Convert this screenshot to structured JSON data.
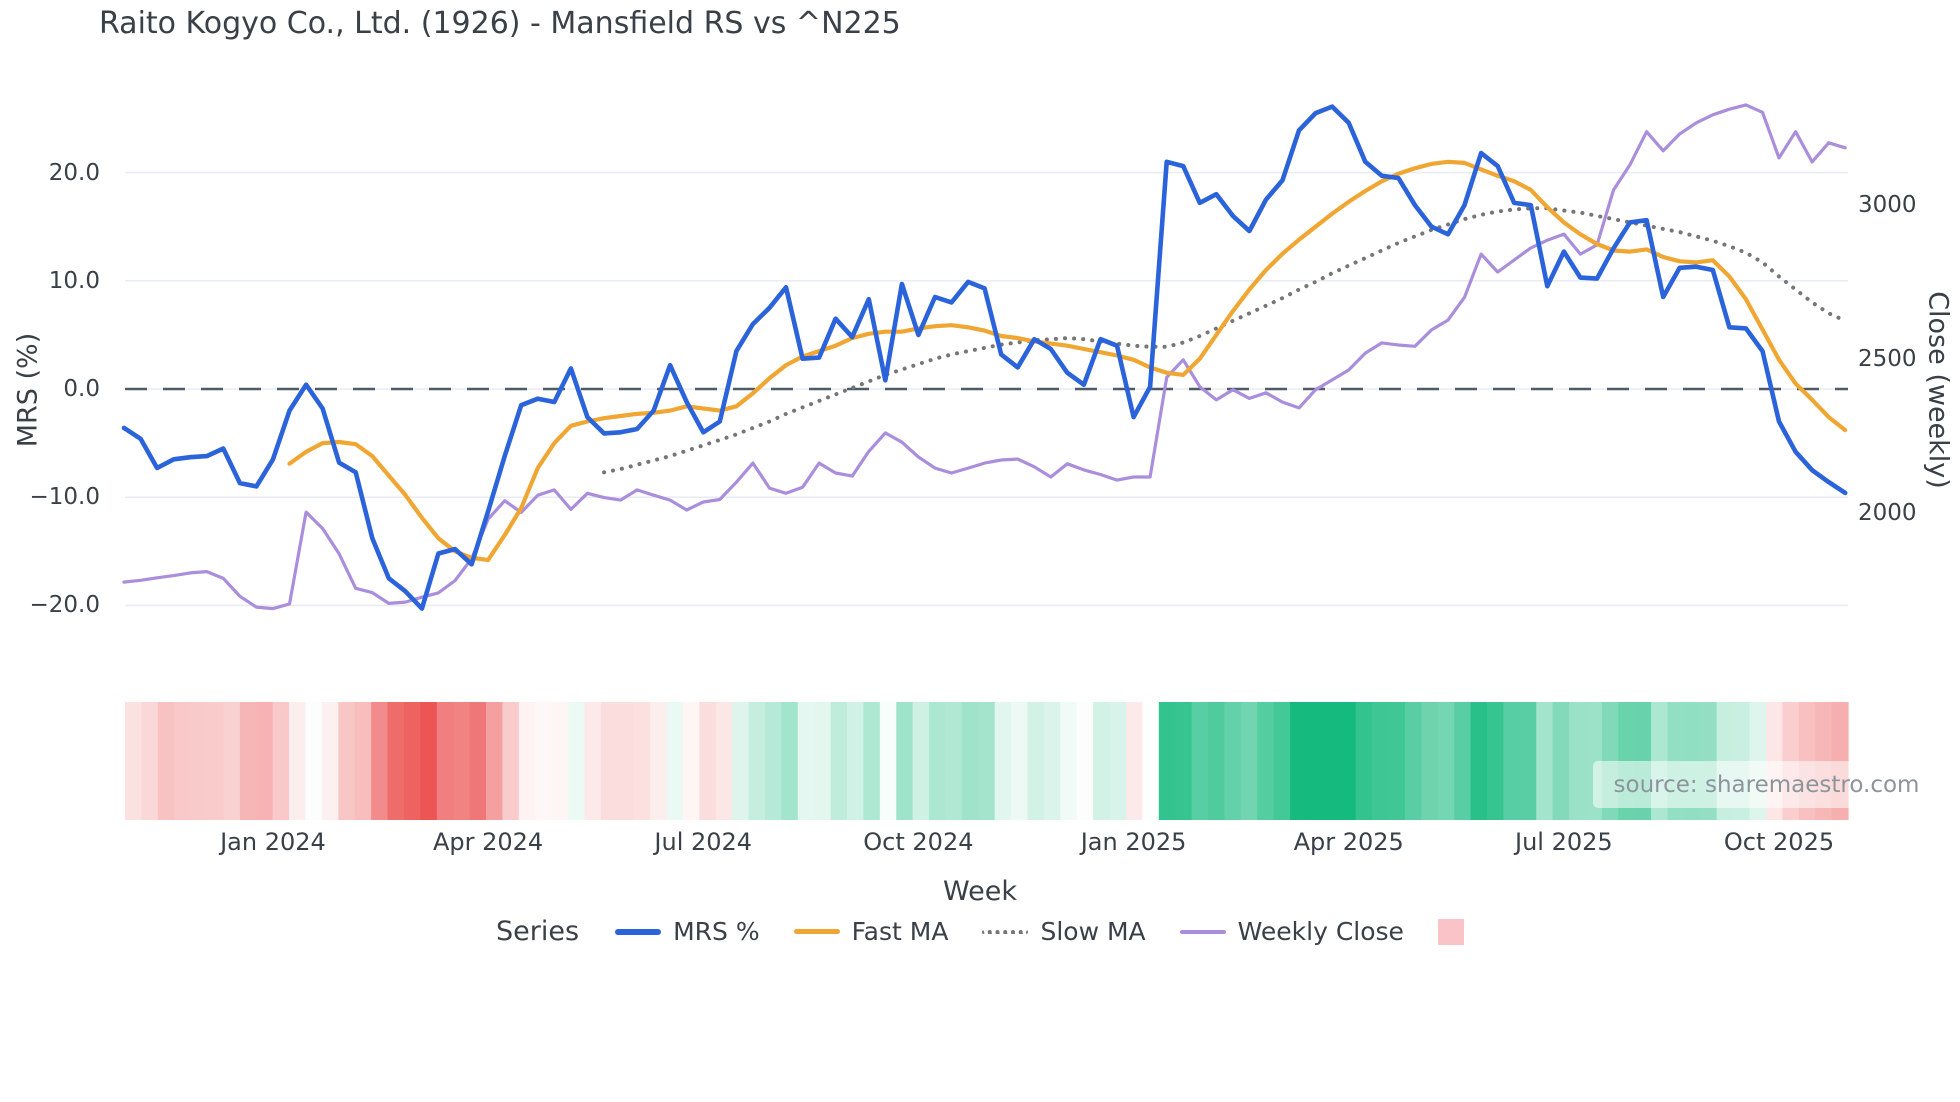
{
  "title": "Raito Kogyo Co., Ltd. (1926) - Mansfield RS vs ^N225",
  "watermark": "source: sharemaestro.com",
  "colors": {
    "mrs_line": "#2b63da",
    "fast_ma_line": "#f0a632",
    "slow_ma_line": "#767676",
    "close_line": "#aa8edc",
    "zero_dash": "#4e5a66",
    "gridline": "#e9edf3",
    "heatmap_positive": "#15ba7e",
    "heatmap_negative": "#eb4646",
    "legend_heatmap_swatch": "#f9c3c7",
    "text": "#3a4047",
    "watermark_text": "#8d949b"
  },
  "axes": {
    "left": {
      "label": "MRS (%)",
      "ticks": [
        {
          "v": 20,
          "label": "20.0"
        },
        {
          "v": 10,
          "label": "10.0"
        },
        {
          "v": 0,
          "label": "0.0"
        },
        {
          "v": -10,
          "label": "−10.0"
        },
        {
          "v": -20,
          "label": "−20.0"
        }
      ]
    },
    "right": {
      "label": "Close (weekly)",
      "ticks": [
        {
          "v": 3000,
          "label": "3000"
        },
        {
          "v": 2500,
          "label": "2500"
        },
        {
          "v": 2000,
          "label": "2000"
        }
      ]
    },
    "x": {
      "label": "Week",
      "ticks": [
        {
          "week": 9,
          "label": "Jan 2024"
        },
        {
          "week": 22,
          "label": "Apr 2024"
        },
        {
          "week": 35,
          "label": "Jul 2024"
        },
        {
          "week": 48,
          "label": "Oct 2024"
        },
        {
          "week": 61,
          "label": "Jan 2025"
        },
        {
          "week": 74,
          "label": "Apr 2025"
        },
        {
          "week": 87,
          "label": "Jul 2025"
        },
        {
          "week": 100,
          "label": "Oct 2025"
        }
      ]
    }
  },
  "legend": {
    "title": "Series",
    "items": [
      {
        "label": "MRS %",
        "style": "line",
        "color": "#2b63da",
        "thickness": 6
      },
      {
        "label": "Fast MA",
        "style": "line",
        "color": "#f0a632",
        "thickness": 5
      },
      {
        "label": "Slow MA",
        "style": "dotted",
        "color": "#767676",
        "thickness": 4
      },
      {
        "label": "Weekly Close",
        "style": "line",
        "color": "#aa8edc",
        "thickness": 4
      },
      {
        "label": "",
        "style": "square",
        "color": "#f9c3c7",
        "thickness": 26
      }
    ]
  },
  "chart_data": {
    "type": "line",
    "title": "Raito Kogyo Co., Ltd. (1926) - Mansfield RS vs ^N225",
    "xlabel": "Week",
    "ylabel_left": "MRS (%)",
    "ylabel_right": "Close (weekly)",
    "x_unit": "weekly points, week 0 ≈ early Nov 2023 through week 104 ≈ early Nov 2025",
    "n_points": 105,
    "ylim_left": [
      -23.66,
      29.02
    ],
    "ylim_right": [
      1572,
      3421
    ],
    "grid": true,
    "zero_line": {
      "value": 0,
      "style": "dashed",
      "color": "#4e5a66"
    },
    "legend_position": "bottom-center",
    "series": [
      {
        "name": "MRS %",
        "axis": "left",
        "color": "#2b63da",
        "style": "solid",
        "width": 4.6,
        "values": [
          -3.6,
          -4.6,
          -7.3,
          -6.5,
          -6.3,
          -6.2,
          -5.5,
          -8.7,
          -9.0,
          -6.5,
          -2.0,
          0.4,
          -1.8,
          -6.8,
          -7.7,
          -13.8,
          -17.5,
          -18.7,
          -20.3,
          -15.2,
          -14.8,
          -16.2,
          -11.3,
          -6.2,
          -1.5,
          -0.9,
          -1.2,
          1.9,
          -2.6,
          -4.1,
          -4.0,
          -3.7,
          -2.0,
          2.2,
          -1.2,
          -4.0,
          -3.0,
          3.5,
          6.0,
          7.5,
          9.4,
          2.8,
          2.9,
          6.5,
          4.8,
          8.3,
          0.8,
          9.7,
          5.0,
          8.5,
          8.0,
          9.9,
          9.3,
          3.2,
          2.0,
          4.6,
          3.7,
          1.5,
          0.4,
          4.6,
          4.0,
          -2.6,
          0.2,
          21.0,
          20.6,
          17.2,
          18.0,
          16.0,
          14.6,
          17.5,
          19.3,
          23.9,
          25.5,
          26.1,
          24.6,
          21.0,
          19.7,
          19.5,
          17.0,
          15.0,
          14.3,
          17.0,
          21.8,
          20.6,
          17.2,
          17.0,
          9.5,
          12.7,
          10.3,
          10.2,
          13.0,
          15.4,
          15.6,
          8.5,
          11.2,
          11.3,
          11.0,
          5.7,
          5.6,
          3.5,
          -3.0,
          -5.8,
          -7.5,
          -8.6,
          -9.6
        ]
      },
      {
        "name": "Fast MA",
        "axis": "left",
        "color": "#f0a632",
        "style": "solid",
        "width": 4.2,
        "values": [
          null,
          null,
          null,
          null,
          null,
          null,
          null,
          null,
          null,
          null,
          -6.9,
          -5.8,
          -5.0,
          -4.9,
          -5.1,
          -6.2,
          -8.0,
          -9.8,
          -11.9,
          -13.8,
          -15.0,
          -15.6,
          -15.8,
          -13.5,
          -11.0,
          -7.3,
          -5.0,
          -3.4,
          -3.0,
          -2.7,
          -2.5,
          -2.3,
          -2.2,
          -2.0,
          -1.6,
          -1.8,
          -2.0,
          -1.6,
          -0.4,
          1.0,
          2.2,
          3.0,
          3.5,
          4.0,
          4.7,
          5.1,
          5.3,
          5.3,
          5.6,
          5.8,
          5.9,
          5.7,
          5.4,
          4.9,
          4.7,
          4.4,
          4.2,
          4.0,
          3.7,
          3.4,
          3.1,
          2.7,
          2.0,
          1.5,
          1.3,
          2.8,
          5.0,
          7.2,
          9.2,
          11.0,
          12.5,
          13.8,
          15.0,
          16.2,
          17.3,
          18.3,
          19.2,
          19.9,
          20.4,
          20.8,
          21.0,
          20.9,
          20.3,
          19.7,
          19.2,
          18.4,
          16.8,
          15.4,
          14.3,
          13.4,
          12.8,
          12.7,
          12.9,
          12.2,
          11.8,
          11.7,
          11.9,
          10.4,
          8.3,
          5.5,
          2.7,
          0.5,
          -1.0,
          -2.6,
          -3.8
        ]
      },
      {
        "name": "Slow MA",
        "axis": "left",
        "color": "#767676",
        "style": "dotted",
        "width": 4,
        "values": [
          null,
          null,
          null,
          null,
          null,
          null,
          null,
          null,
          null,
          null,
          null,
          null,
          null,
          null,
          null,
          null,
          null,
          null,
          null,
          null,
          null,
          null,
          null,
          null,
          null,
          null,
          null,
          null,
          null,
          -7.7,
          -7.4,
          -7.0,
          -6.6,
          -6.2,
          -5.7,
          -5.2,
          -4.7,
          -4.2,
          -3.6,
          -3.0,
          -2.3,
          -1.7,
          -1.1,
          -0.5,
          0.1,
          0.7,
          1.3,
          1.8,
          2.3,
          2.8,
          3.2,
          3.5,
          3.8,
          4.1,
          4.3,
          4.5,
          4.6,
          4.7,
          4.6,
          4.4,
          4.2,
          4.0,
          3.9,
          3.9,
          4.3,
          4.9,
          5.6,
          6.3,
          7.0,
          7.7,
          8.4,
          9.2,
          9.9,
          10.7,
          11.4,
          12.1,
          12.8,
          13.5,
          14.1,
          14.7,
          15.2,
          15.7,
          16.1,
          16.4,
          16.6,
          16.7,
          16.7,
          16.5,
          16.3,
          16.0,
          15.7,
          15.4,
          15.1,
          14.8,
          14.5,
          14.1,
          13.7,
          13.2,
          12.6,
          11.7,
          10.4,
          9.2,
          8.0,
          7.0,
          6.3
        ]
      },
      {
        "name": "Weekly Close",
        "axis": "right",
        "color": "#aa8edc",
        "style": "solid",
        "width": 3.2,
        "values": [
          1776,
          1782,
          1790,
          1797,
          1806,
          1810,
          1788,
          1730,
          1695,
          1690,
          1705,
          2003,
          1950,
          1868,
          1756,
          1742,
          1707,
          1711,
          1727,
          1741,
          1781,
          1852,
          1980,
          2040,
          2002,
          2058,
          2075,
          2012,
          2064,
          2050,
          2042,
          2075,
          2058,
          2042,
          2010,
          2036,
          2044,
          2100,
          2162,
          2081,
          2064,
          2084,
          2162,
          2130,
          2120,
          2200,
          2260,
          2230,
          2182,
          2146,
          2130,
          2146,
          2162,
          2172,
          2175,
          2150,
          2117,
          2160,
          2140,
          2125,
          2107,
          2117,
          2117,
          2440,
          2497,
          2410,
          2367,
          2400,
          2372,
          2390,
          2360,
          2341,
          2400,
          2432,
          2464,
          2519,
          2552,
          2545,
          2541,
          2594,
          2626,
          2700,
          2840,
          2782,
          2821,
          2860,
          2885,
          2905,
          2840,
          2870,
          3048,
          3130,
          3237,
          3175,
          3230,
          3266,
          3292,
          3310,
          3324,
          3300,
          3152,
          3237,
          3139,
          3201,
          3185
        ]
      }
    ],
    "heatmap": {
      "source_series": "MRS %",
      "description": "Weekly strip below plot: each cell colored by MRS % value, red = negative, green = positive, white = near zero",
      "positive_full_color": "#15ba7e",
      "negative_full_color": "#eb4646"
    }
  }
}
